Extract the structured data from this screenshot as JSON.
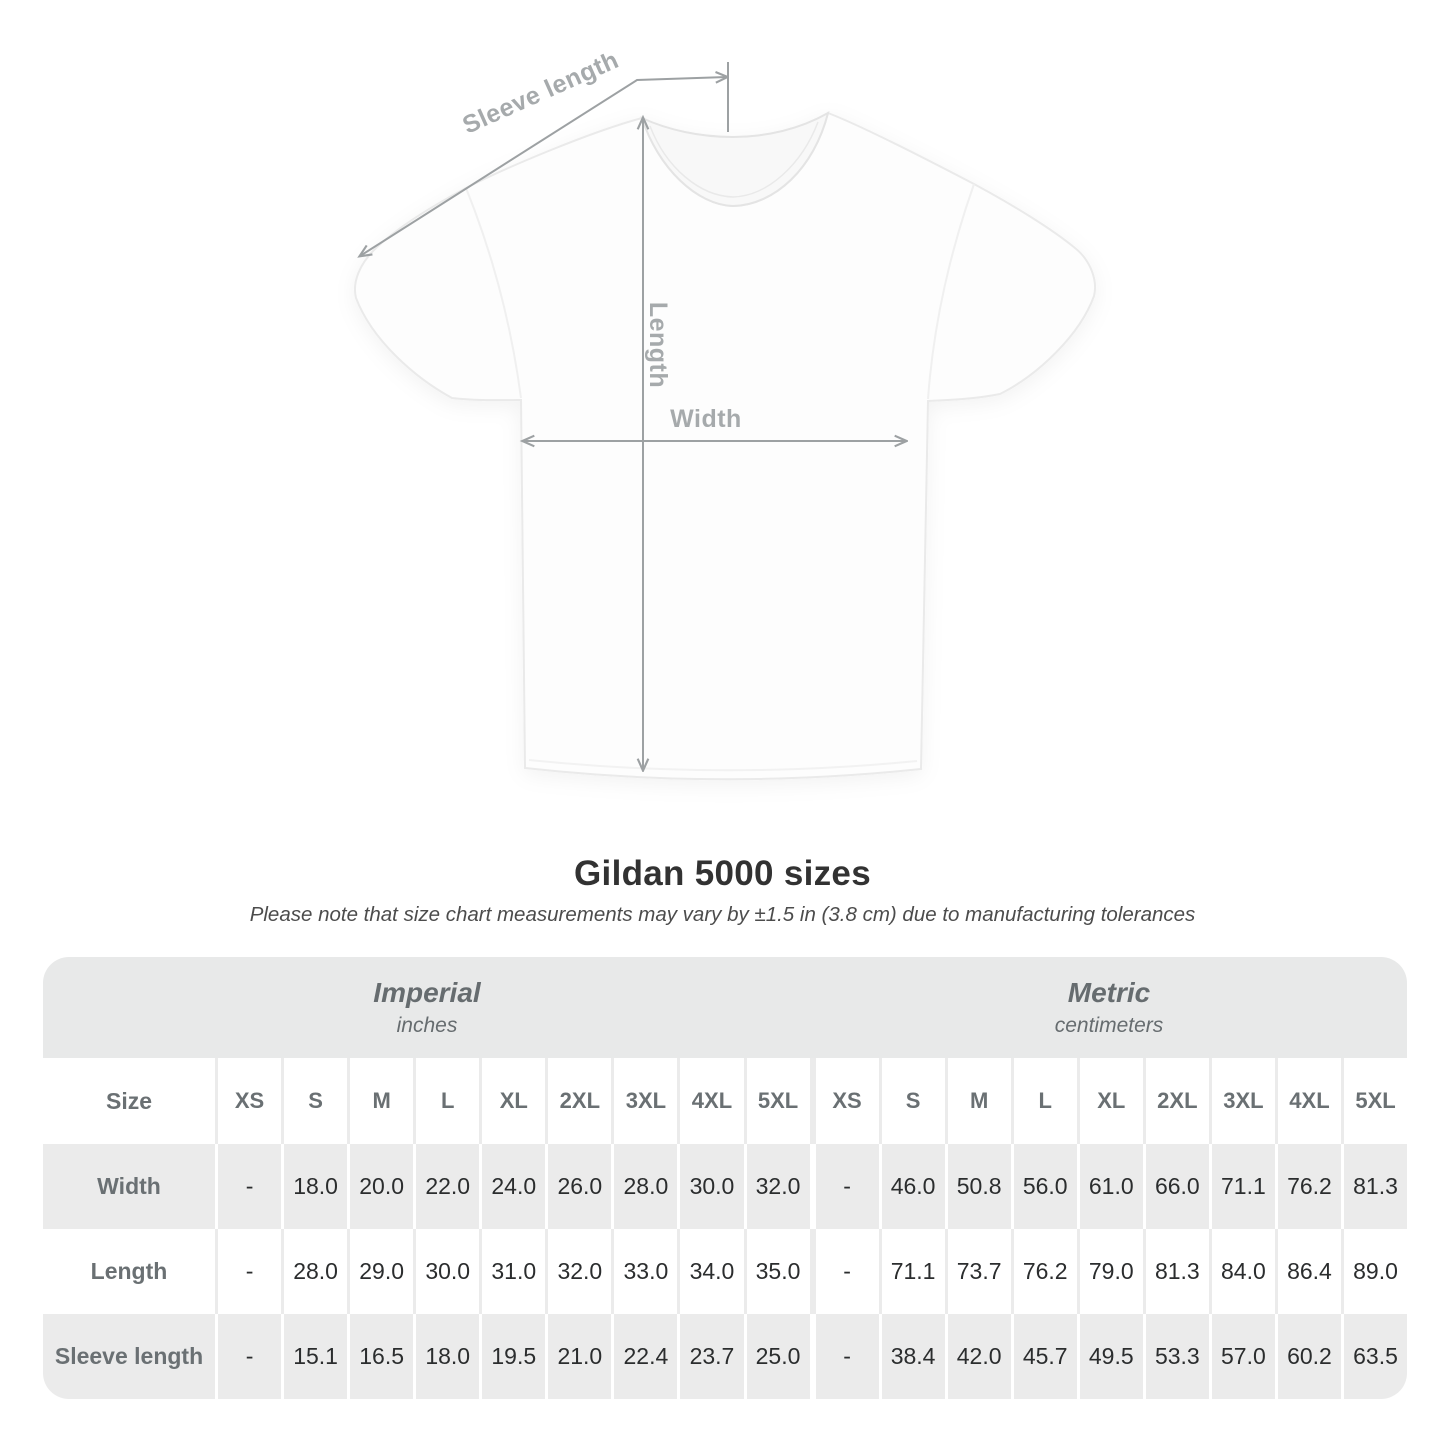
{
  "figure": {
    "labels": {
      "sleeve": "Sleeve length",
      "length": "Length",
      "width": "Width"
    },
    "line_color": "#9da1a3",
    "label_color": "#a6aaac"
  },
  "title": "Gildan 5000 sizes",
  "subtitle": "Please note that size chart measurements may vary by ±1.5 in (3.8 cm) due to manufacturing tolerances",
  "table": {
    "size_header": "Size",
    "unit_groups": [
      {
        "name": "Imperial",
        "unit": "inches"
      },
      {
        "name": "Metric",
        "unit": "centimeters"
      }
    ],
    "sizes": [
      "XS",
      "S",
      "M",
      "L",
      "XL",
      "2XL",
      "3XL",
      "4XL",
      "5XL"
    ],
    "rows": [
      {
        "label": "Width",
        "imperial": [
          "-",
          "18.0",
          "20.0",
          "22.0",
          "24.0",
          "26.0",
          "28.0",
          "30.0",
          "32.0"
        ],
        "metric": [
          "-",
          "46.0",
          "50.8",
          "56.0",
          "61.0",
          "66.0",
          "71.1",
          "76.2",
          "81.3"
        ]
      },
      {
        "label": "Length",
        "imperial": [
          "-",
          "28.0",
          "29.0",
          "30.0",
          "31.0",
          "32.0",
          "33.0",
          "34.0",
          "35.0"
        ],
        "metric": [
          "-",
          "71.1",
          "73.7",
          "76.2",
          "79.0",
          "81.3",
          "84.0",
          "86.4",
          "89.0"
        ]
      },
      {
        "label": "Sleeve length",
        "imperial": [
          "-",
          "15.1",
          "16.5",
          "18.0",
          "19.5",
          "21.0",
          "22.4",
          "23.7",
          "25.0"
        ],
        "metric": [
          "-",
          "38.4",
          "42.0",
          "45.7",
          "49.5",
          "53.3",
          "57.0",
          "60.2",
          "63.5"
        ]
      }
    ],
    "colors": {
      "band_bg": "#e8e9e9",
      "grey_row_bg": "#ebebeb",
      "header_text": "#6a7073",
      "value_text": "#2b2d2e"
    }
  }
}
